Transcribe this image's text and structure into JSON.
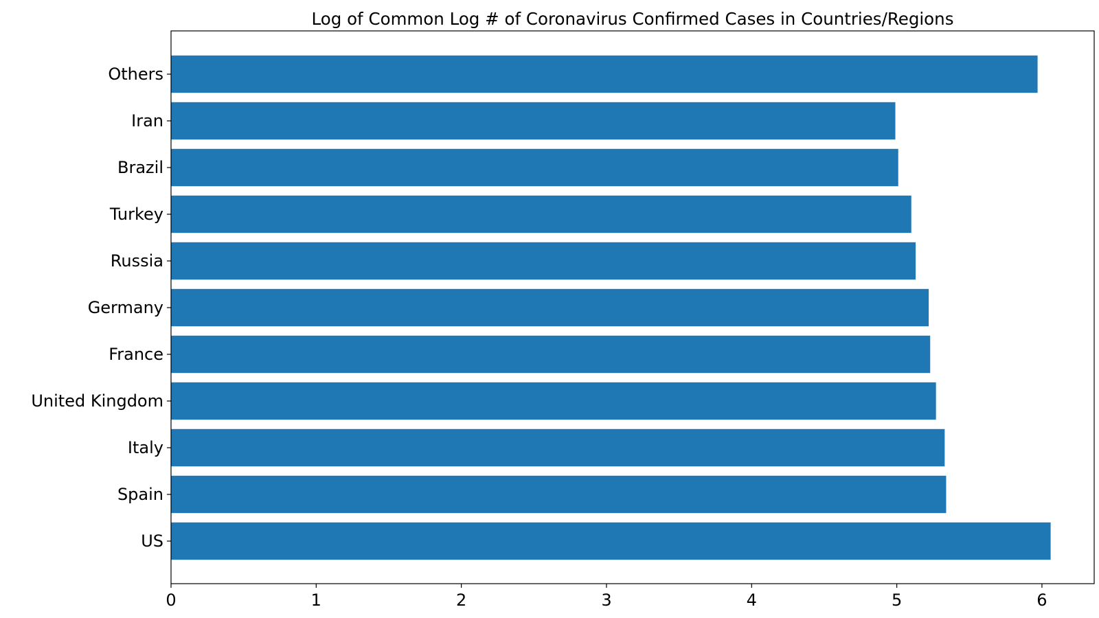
{
  "chart_data": {
    "type": "bar",
    "orientation": "horizontal",
    "title": "Log of Common Log # of Coronavirus Confirmed Cases in Countries/Regions",
    "xlabel": "",
    "ylabel": "",
    "categories": [
      "US",
      "Spain",
      "Italy",
      "United Kingdom",
      "France",
      "Germany",
      "Russia",
      "Turkey",
      "Brazil",
      "Iran",
      "Others"
    ],
    "values": [
      6.06,
      5.34,
      5.33,
      5.27,
      5.23,
      5.22,
      5.13,
      5.1,
      5.01,
      4.99,
      5.97
    ],
    "xlim": [
      0,
      6.36
    ],
    "xticks": [
      0,
      1,
      2,
      3,
      4,
      5,
      6
    ],
    "bar_color": "#1f77b4",
    "grid": false,
    "legend": "none"
  }
}
